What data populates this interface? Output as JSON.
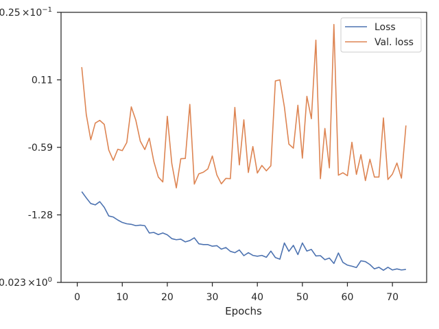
{
  "chart_data": {
    "type": "line",
    "title": "",
    "xlabel": "Epochs",
    "ylabel": "",
    "xlim": [
      -3.6,
      77.6
    ],
    "ylim": [
      0.023,
      0.25
    ],
    "yscale": "custom",
    "grid": false,
    "legend_position": "top-right",
    "x_ticks": [
      0,
      10,
      20,
      30,
      40,
      50,
      60,
      70
    ],
    "y_ticks": [
      {
        "label_pre": "",
        "label_base": "",
        "label_exp": "",
        "label_plain": "-1.28",
        "frac": 0.25
      },
      {
        "label_pre": "",
        "label_base": "",
        "label_exp": "",
        "label_plain": "-0.59",
        "frac": 0.5
      },
      {
        "label_pre": "",
        "label_base": "",
        "label_exp": "",
        "label_plain": "0.11",
        "frac": 0.75
      }
    ],
    "y_edge_labels": {
      "top": {
        "pre": "0.25",
        "base": "×10",
        "exp": "−1"
      },
      "bottom": {
        "pre": "0.023",
        "base": "×10",
        "exp": "0"
      }
    },
    "x": [
      1,
      2,
      3,
      4,
      5,
      6,
      7,
      8,
      9,
      10,
      11,
      12,
      13,
      14,
      15,
      16,
      17,
      18,
      19,
      20,
      21,
      22,
      23,
      24,
      25,
      26,
      27,
      28,
      29,
      30,
      31,
      32,
      33,
      34,
      35,
      36,
      37,
      38,
      39,
      40,
      41,
      42,
      43,
      44,
      45,
      46,
      47,
      48,
      49,
      50,
      51,
      52,
      53,
      54,
      55,
      56,
      57,
      58,
      59,
      60,
      61,
      62,
      63,
      64,
      65,
      66,
      67,
      68,
      69,
      70,
      71,
      72,
      73
    ],
    "series": [
      {
        "name": "Loss",
        "color": "#4c72b0",
        "frac": [
          0.336,
          0.313,
          0.292,
          0.287,
          0.299,
          0.278,
          0.246,
          0.242,
          0.231,
          0.222,
          0.217,
          0.215,
          0.21,
          0.212,
          0.21,
          0.183,
          0.185,
          0.177,
          0.183,
          0.176,
          0.162,
          0.158,
          0.16,
          0.15,
          0.155,
          0.165,
          0.143,
          0.14,
          0.14,
          0.134,
          0.136,
          0.123,
          0.129,
          0.115,
          0.11,
          0.12,
          0.099,
          0.11,
          0.1,
          0.097,
          0.1,
          0.093,
          0.116,
          0.092,
          0.086,
          0.146,
          0.115,
          0.137,
          0.103,
          0.146,
          0.116,
          0.122,
          0.098,
          0.099,
          0.084,
          0.09,
          0.07,
          0.109,
          0.074,
          0.064,
          0.06,
          0.055,
          0.08,
          0.077,
          0.066,
          0.05,
          0.056,
          0.045,
          0.056,
          0.046,
          0.05,
          0.046,
          0.048
        ]
      },
      {
        "name": "Val. loss",
        "color": "#dd8452",
        "frac": [
          0.797,
          0.622,
          0.528,
          0.59,
          0.6,
          0.585,
          0.49,
          0.452,
          0.493,
          0.488,
          0.518,
          0.65,
          0.601,
          0.523,
          0.492,
          0.534,
          0.448,
          0.39,
          0.372,
          0.615,
          0.44,
          0.35,
          0.458,
          0.459,
          0.659,
          0.364,
          0.402,
          0.408,
          0.42,
          0.468,
          0.398,
          0.365,
          0.385,
          0.384,
          0.648,
          0.435,
          0.602,
          0.407,
          0.503,
          0.405,
          0.433,
          0.413,
          0.432,
          0.746,
          0.75,
          0.65,
          0.512,
          0.497,
          0.656,
          0.46,
          0.689,
          0.606,
          0.897,
          0.384,
          0.57,
          0.424,
          0.955,
          0.397,
          0.406,
          0.395,
          0.519,
          0.4,
          0.473,
          0.377,
          0.456,
          0.39,
          0.39,
          0.609,
          0.381,
          0.401,
          0.442,
          0.386,
          0.581
        ]
      }
    ]
  }
}
